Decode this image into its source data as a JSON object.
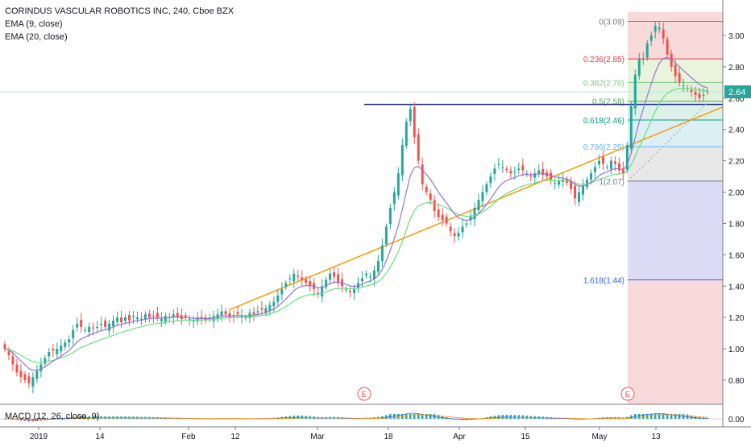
{
  "legend": {
    "title": "CORINDUS VASCULAR ROBOTICS INC, 240, Cboe BZX",
    "ema9": "EMA (9, close)",
    "ema20": "EMA (20, close)"
  },
  "macd_label": "MACD (12, 26, close, 9)",
  "price_badge": "2.64",
  "earnings_marker": "E",
  "colors": {
    "up": "#26a69a",
    "down": "#ef5350",
    "ema9": "#9575cd",
    "ema20": "#66e07a",
    "trendline": "#ff9800",
    "hline": "#1a237e",
    "badge": "#26a69a"
  },
  "chart_data": {
    "type": "candlestick",
    "title": "CORINDUS VASCULAR ROBOTICS INC, 240, Cboe BZX",
    "ylim": [
      0.7,
      3.12
    ],
    "y_ticks": [
      "0.80",
      "1.00",
      "1.20",
      "1.40",
      "1.60",
      "1.80",
      "2.00",
      "2.20",
      "2.40",
      "2.60",
      "2.80",
      "3.00"
    ],
    "x_ticks": [
      "2019",
      "14",
      "Feb",
      "12",
      "Mar",
      "18",
      "Apr",
      "15",
      "May",
      "13"
    ],
    "last_price": 2.64,
    "resistance_line": 2.56,
    "trendline": {
      "from": [
        56,
        1.25
      ],
      "to": [
        188,
        2.64
      ]
    },
    "fibonacci": [
      {
        "label": "0(3.09)",
        "level": 3.09,
        "color": "#787b86"
      },
      {
        "label": "0.236(2.85)",
        "level": 2.85,
        "color": "#f23645"
      },
      {
        "label": "0.382(2.70)",
        "level": 2.7,
        "color": "#81c784"
      },
      {
        "label": "0.5(2.58)",
        "level": 2.58,
        "color": "#4caf50"
      },
      {
        "label": "0.618(2.46)",
        "level": 2.46,
        "color": "#089981"
      },
      {
        "label": "0.786(2.29)",
        "level": 2.29,
        "color": "#64b5f6"
      },
      {
        "label": "1(2.07)",
        "level": 2.07,
        "color": "#787b86"
      },
      {
        "label": "1.618(1.44)",
        "level": 1.44,
        "color": "#2962ff"
      }
    ],
    "macd": {
      "name": "MACD (12, 26, close, 9)",
      "y_ticks": [
        "0.00"
      ]
    },
    "candles_close": [
      1.0,
      0.96,
      0.9,
      0.85,
      0.82,
      0.8,
      0.78,
      0.82,
      0.86,
      0.9,
      0.94,
      0.98,
      0.99,
      1.0,
      1.02,
      1.04,
      1.06,
      1.12,
      1.16,
      1.14,
      1.12,
      1.14,
      1.13,
      1.14,
      1.16,
      1.14,
      1.16,
      1.18,
      1.2,
      1.17,
      1.2,
      1.18,
      1.21,
      1.2,
      1.19,
      1.22,
      1.2,
      1.21,
      1.2,
      1.19,
      1.21,
      1.2,
      1.22,
      1.2,
      1.19,
      1.2,
      1.19,
      1.18,
      1.2,
      1.19,
      1.18,
      1.2,
      1.21,
      1.22,
      1.24,
      1.22,
      1.2,
      1.21,
      1.22,
      1.21,
      1.2,
      1.23,
      1.22,
      1.24,
      1.25,
      1.26,
      1.28,
      1.3,
      1.34,
      1.38,
      1.42,
      1.45,
      1.48,
      1.46,
      1.44,
      1.42,
      1.4,
      1.38,
      1.35,
      1.4,
      1.44,
      1.48,
      1.46,
      1.42,
      1.4,
      1.38,
      1.36,
      1.38,
      1.42,
      1.45,
      1.48,
      1.46,
      1.5,
      1.56,
      1.66,
      1.78,
      1.9,
      2.0,
      2.12,
      2.3,
      2.45,
      2.53,
      2.35,
      2.2,
      2.05,
      2.0,
      1.95,
      1.88,
      1.84,
      1.82,
      1.8,
      1.75,
      1.72,
      1.74,
      1.78,
      1.8,
      1.85,
      1.9,
      1.95,
      2.0,
      2.05,
      2.1,
      2.15,
      2.18,
      2.16,
      2.14,
      2.12,
      2.13,
      2.15,
      2.14,
      2.12,
      2.1,
      2.12,
      2.14,
      2.11,
      2.1,
      2.08,
      2.06,
      2.07,
      2.08,
      2.06,
      2.02,
      1.96,
      2.0,
      2.04,
      2.08,
      2.12,
      2.16,
      2.2,
      2.18,
      2.16,
      2.2,
      2.18,
      2.14,
      2.12,
      2.3,
      2.55,
      2.75,
      2.85,
      2.85,
      2.95,
      3.0,
      3.06,
      3.05,
      2.98,
      2.88,
      2.8,
      2.74,
      2.7,
      2.68,
      2.66,
      2.64,
      2.62,
      2.6,
      2.62,
      2.64
    ]
  }
}
